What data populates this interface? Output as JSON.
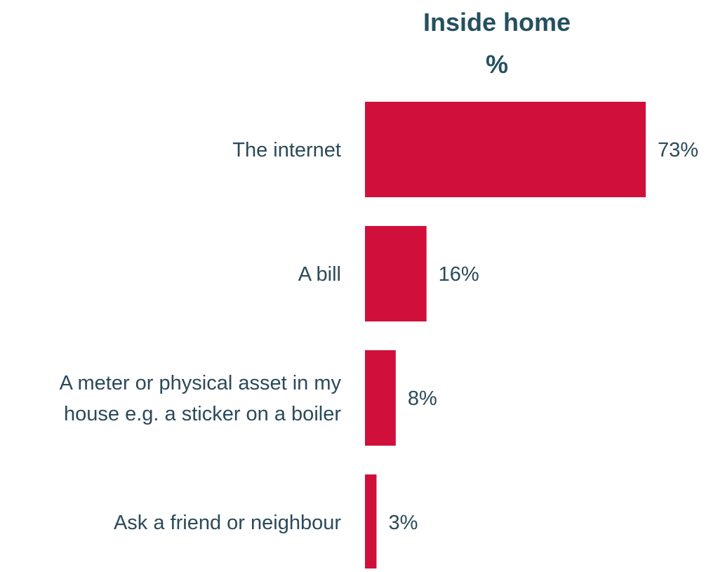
{
  "chart_data": {
    "type": "bar",
    "orientation": "horizontal",
    "title": "Inside home",
    "subtitle": "%",
    "categories": [
      [
        "The internet"
      ],
      [
        "A bill"
      ],
      [
        "A meter or physical asset in my",
        "house e.g. a sticker on a boiler"
      ],
      [
        "Ask a friend or neighbour"
      ]
    ],
    "values": [
      73,
      16,
      8,
      3
    ],
    "value_labels": [
      "73%",
      "16%",
      "8%",
      "3%"
    ],
    "xlim": [
      0,
      73
    ],
    "grid": false,
    "legend": "none"
  },
  "colors": {
    "bar": "#d0103a",
    "text": "#2b4a5a",
    "title": "#24505f"
  }
}
